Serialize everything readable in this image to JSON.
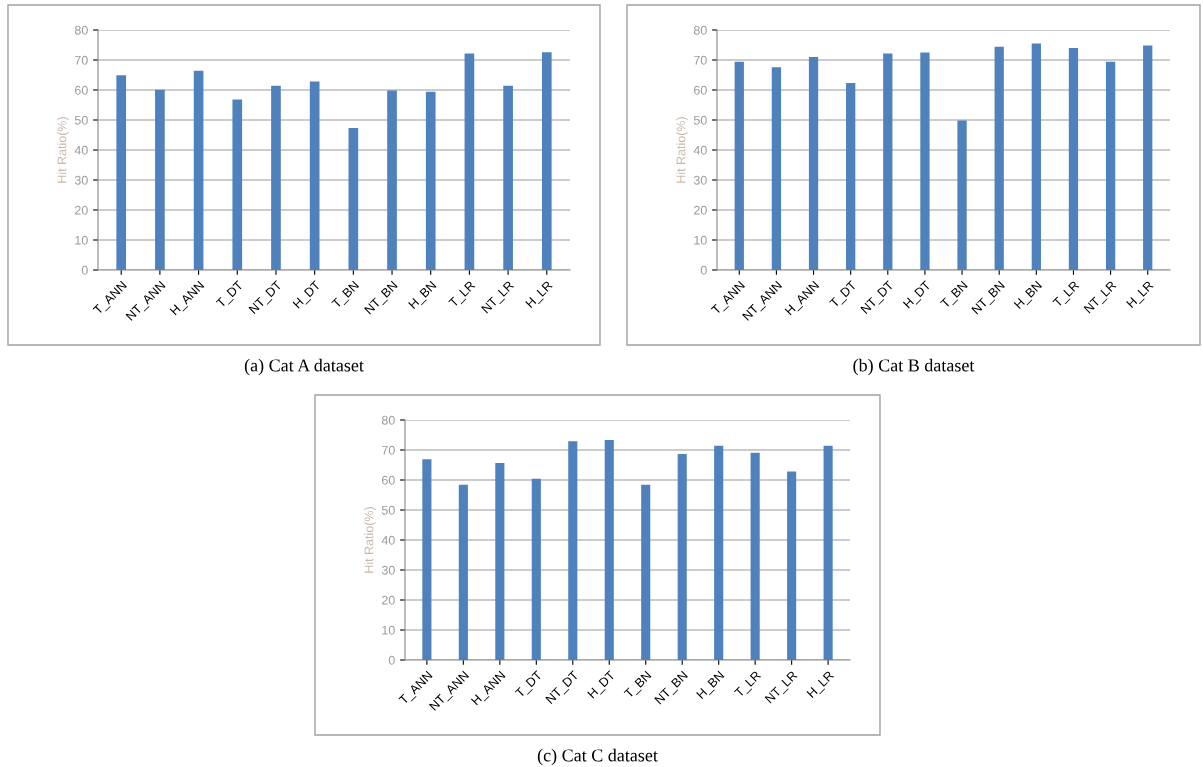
{
  "chart_data": [
    {
      "type": "bar",
      "ylabel": "Hit Ratio(%)",
      "annotations": [
        "(a) Cat A dataset"
      ],
      "categories": [
        "T_ANN",
        "NT_ANN",
        "H_ANN",
        "T_DT",
        "NT_DT",
        "H_DT",
        "T_BN",
        "NT_BN",
        "H_BN",
        "T_LR",
        "NT_LR",
        "H_LR"
      ],
      "values": [
        64.9,
        60.1,
        66.4,
        56.8,
        61.4,
        62.8,
        47.3,
        59.8,
        59.4,
        72.2,
        61.4,
        72.6
      ],
      "color": "#4f81bd",
      "ylim": [
        0,
        80
      ],
      "yticks": [
        0,
        10,
        20,
        30,
        40,
        50,
        60,
        70,
        80
      ],
      "grid": "y"
    },
    {
      "type": "bar",
      "ylabel": "Hit Ratio(%)",
      "annotations": [
        "(b) Cat B dataset"
      ],
      "categories": [
        "T_ANN",
        "NT_ANN",
        "H_ANN",
        "T_DT",
        "NT_DT",
        "H_DT",
        "T_BN",
        "NT_BN",
        "H_BN",
        "T_LR",
        "NT_LR",
        "H_LR"
      ],
      "values": [
        69.4,
        67.6,
        71.0,
        62.3,
        72.2,
        72.5,
        49.8,
        74.4,
        75.5,
        74.0,
        69.4,
        74.8
      ],
      "color": "#4f81bd",
      "ylim": [
        0,
        80
      ],
      "yticks": [
        0,
        10,
        20,
        30,
        40,
        50,
        60,
        70,
        80
      ],
      "grid": "y"
    },
    {
      "type": "bar",
      "ylabel": "Hit Ratio(%)",
      "annotations": [
        "(c) Cat C dataset"
      ],
      "categories": [
        "T_ANN",
        "NT_ANN",
        "H_ANN",
        "T_DT",
        "NT_DT",
        "H_DT",
        "T_BN",
        "NT_BN",
        "H_BN",
        "T_LR",
        "NT_LR",
        "H_LR"
      ],
      "values": [
        66.9,
        58.4,
        65.7,
        60.4,
        72.9,
        73.3,
        58.4,
        68.7,
        71.4,
        69.1,
        62.8,
        71.4
      ],
      "color": "#4f81bd",
      "ylim": [
        0,
        80
      ],
      "yticks": [
        0,
        10,
        20,
        30,
        40,
        50,
        60,
        70,
        80
      ],
      "grid": "y"
    }
  ]
}
